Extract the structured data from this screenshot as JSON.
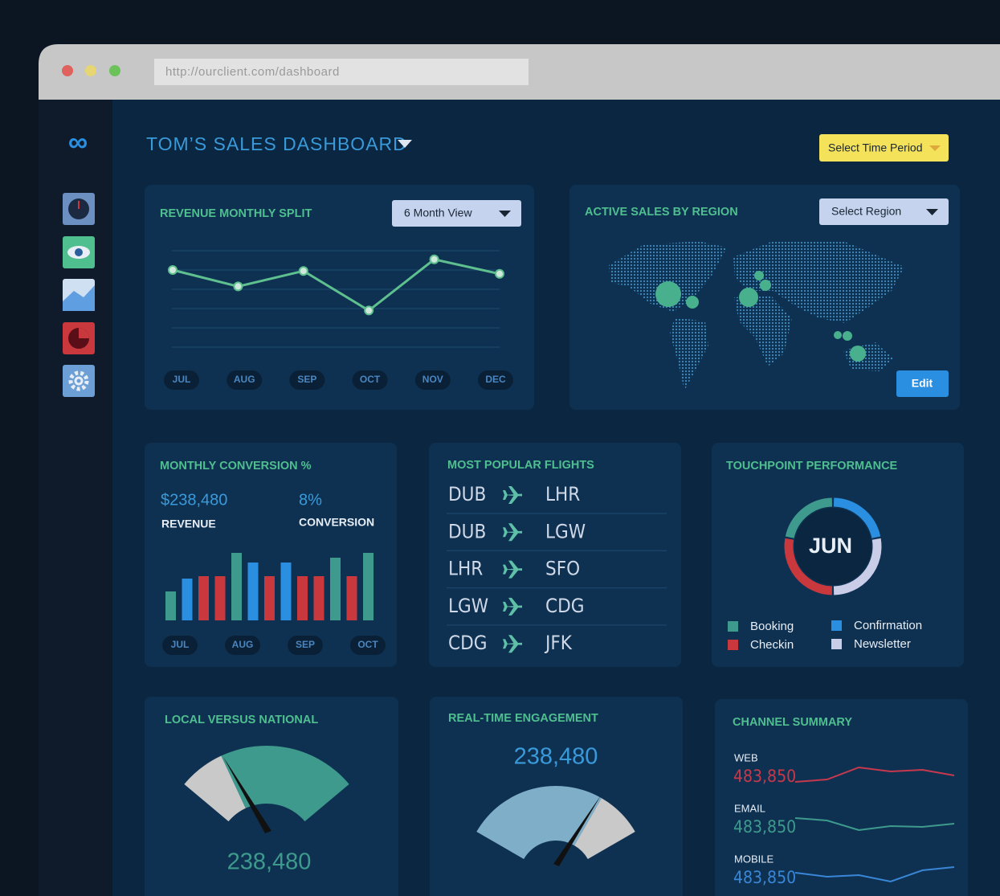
{
  "browser": {
    "url": "http://ourclient.com/dashboard"
  },
  "header": {
    "title": "TOM’S SALES DASHBOARD",
    "time_button": "Select Time Period"
  },
  "revenue": {
    "title": "REVENUE MONTHLY SPLIT",
    "dropdown": "6 Month View",
    "categories": [
      "JUL",
      "AUG",
      "SEP",
      "OCT",
      "NOV",
      "DEC"
    ],
    "values": [
      80,
      63,
      79,
      38,
      91,
      76
    ]
  },
  "region": {
    "title": "ACTIVE SALES BY REGION",
    "dropdown": "Select Region",
    "button": "Edit"
  },
  "conversion": {
    "title": "MONTHLY CONVERSION %",
    "revenue_value": "$238,480",
    "revenue_label": "REVENUE",
    "conversion_value": "8%",
    "conversion_label": "CONVERSION",
    "axis_labels": [
      "JUL",
      "AUG",
      "SEP",
      "OCT"
    ],
    "values": [
      36,
      52,
      55,
      55,
      84,
      72,
      55,
      72,
      55,
      55,
      78,
      55,
      84
    ],
    "colors": [
      "#3e9a8c",
      "#2a8fe0",
      "#c8383c",
      "#c8383c",
      "#3e9a8c",
      "#2a8fe0",
      "#c8383c",
      "#2a8fe0",
      "#c8383c",
      "#c8383c",
      "#3e9a8c",
      "#c8383c",
      "#3e9a8c"
    ]
  },
  "flights": {
    "title": "MOST POPULAR FLIGHTS",
    "rows": [
      [
        "DUB",
        "LHR"
      ],
      [
        "DUB",
        "LGW"
      ],
      [
        "LHR",
        "SFO"
      ],
      [
        "LGW",
        "CDG"
      ],
      [
        "CDG",
        "JFK"
      ]
    ]
  },
  "touchpoint": {
    "title": "TOUCHPOINT PERFORMANCE",
    "center": "JUN",
    "series": [
      {
        "name": "Confirmation",
        "color": "#2a8fe0",
        "value": 22
      },
      {
        "name": "Newsletter",
        "color": "#c9cde8",
        "value": 28
      },
      {
        "name": "Checkin",
        "color": "#c8383c",
        "value": 28
      },
      {
        "name": "Booking",
        "color": "#3e9a8c",
        "value": 22
      }
    ]
  },
  "local": {
    "title": "LOCAL VERSUS NATIONAL",
    "value": "238,480"
  },
  "engagement": {
    "title": "REAL-TIME ENGAGEMENT",
    "value": "238,480"
  },
  "channel": {
    "title": "CHANNEL SUMMARY",
    "rows": [
      {
        "name": "WEB",
        "value": "483,850",
        "color": "#c8384c",
        "values": [
          2,
          5,
          20,
          15,
          17,
          10
        ]
      },
      {
        "name": "EMAIL",
        "value": "483,850",
        "color": "#3e9a8c",
        "values": [
          20,
          17,
          5,
          10,
          9,
          13
        ]
      },
      {
        "name": "MOBILE",
        "value": "483,850",
        "color": "#3a86d6",
        "values": [
          15,
          10,
          12,
          4,
          18,
          22
        ]
      }
    ]
  }
}
